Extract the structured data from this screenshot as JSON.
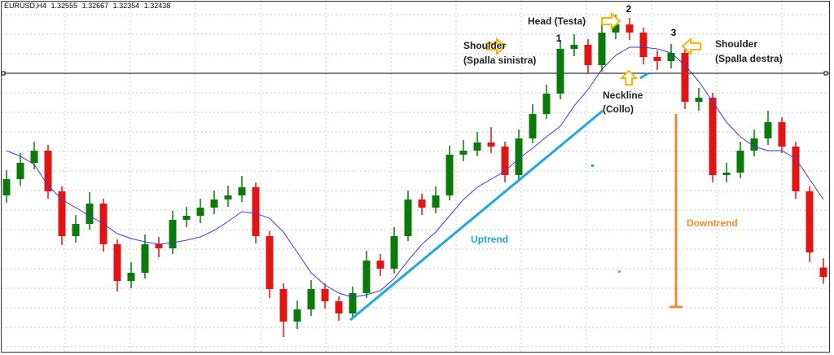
{
  "chart_data": {
    "type": "candlestick",
    "symbol": "EURUSD,H4",
    "open": [
      1.3344,
      1.3364,
      1.3384,
      1.3399,
      1.3349,
      1.3294,
      1.3309,
      1.3334,
      1.3284,
      1.3239,
      1.3249,
      1.3284,
      1.3279,
      1.3314,
      1.3319,
      1.3329,
      1.3339,
      1.3344,
      1.3354,
      1.3294,
      1.3229,
      1.3189,
      1.3204,
      1.3229,
      1.3214,
      1.3199,
      1.3224,
      1.3264,
      1.3254,
      1.3294,
      1.3339,
      1.3329,
      1.3344,
      1.3394,
      1.3399,
      1.3409,
      1.3404,
      1.3369,
      1.3414,
      1.3444,
      1.3469,
      1.3524,
      1.3529,
      1.3504,
      1.3544,
      1.3554,
      1.3544,
      1.3514,
      1.3509,
      1.3519,
      1.3459,
      1.3464,
      1.3369,
      1.3372,
      1.3399,
      1.3414,
      1.3434,
      1.3404,
      1.3349,
      1.32555
    ],
    "high": [
      1.3375,
      1.3396,
      1.341,
      1.3406,
      1.3355,
      1.332,
      1.3348,
      1.334,
      1.329,
      1.3262,
      1.3296,
      1.3293,
      1.3325,
      1.333,
      1.334,
      1.335,
      1.3356,
      1.3368,
      1.336,
      1.33,
      1.3236,
      1.3215,
      1.324,
      1.3236,
      1.322,
      1.3232,
      1.3276,
      1.3272,
      1.3305,
      1.335,
      1.3346,
      1.3355,
      1.3405,
      1.3412,
      1.3422,
      1.3428,
      1.341,
      1.3425,
      1.3456,
      1.348,
      1.3535,
      1.3542,
      1.3536,
      1.3556,
      1.3566,
      1.3562,
      1.355,
      1.3522,
      1.353,
      1.3525,
      1.3476,
      1.347,
      1.3384,
      1.341,
      1.3425,
      1.3448,
      1.344,
      1.341,
      1.3355,
      1.32667
    ],
    "low": [
      1.3335,
      1.3356,
      1.3376,
      1.334,
      1.3283,
      1.3286,
      1.3302,
      1.3275,
      1.3226,
      1.323,
      1.3242,
      1.3268,
      1.3272,
      1.3305,
      1.331,
      1.3321,
      1.333,
      1.3336,
      1.3285,
      1.3218,
      1.317,
      1.318,
      1.3196,
      1.3205,
      1.319,
      1.3192,
      1.3218,
      1.3245,
      1.3248,
      1.3288,
      1.332,
      1.3322,
      1.3338,
      1.3386,
      1.3392,
      1.3396,
      1.336,
      1.3362,
      1.3408,
      1.3438,
      1.3462,
      1.3515,
      1.3494,
      1.3496,
      1.3536,
      1.3535,
      1.3505,
      1.3498,
      1.35,
      1.345,
      1.3448,
      1.336,
      1.336,
      1.3365,
      1.3392,
      1.3406,
      1.3396,
      1.334,
      1.3262,
      1.32354
    ],
    "close": [
      1.3364,
      1.3384,
      1.3399,
      1.3349,
      1.3294,
      1.3309,
      1.3334,
      1.3284,
      1.3239,
      1.3249,
      1.3284,
      1.3279,
      1.3314,
      1.3319,
      1.3329,
      1.3339,
      1.3344,
      1.3354,
      1.3294,
      1.3229,
      1.3189,
      1.3204,
      1.3229,
      1.3214,
      1.3199,
      1.3224,
      1.3264,
      1.3254,
      1.3294,
      1.3339,
      1.3329,
      1.3344,
      1.3394,
      1.3399,
      1.3409,
      1.3404,
      1.3369,
      1.3414,
      1.3444,
      1.3469,
      1.3524,
      1.3529,
      1.3504,
      1.3544,
      1.3554,
      1.3544,
      1.3514,
      1.3509,
      1.3519,
      1.3459,
      1.3464,
      1.3369,
      1.3372,
      1.3399,
      1.3414,
      1.3434,
      1.3404,
      1.3349,
      1.3274,
      1.32438
    ],
    "up_color": "#0a7a0a",
    "down_color": "#e31414",
    "moving_average": {
      "color": "#3a3ad6",
      "values": [
        1.3399,
        1.3392,
        1.3382,
        1.3356,
        1.3339,
        1.3329,
        1.3319,
        1.3309,
        1.3297,
        1.3291,
        1.3287,
        1.3284,
        1.3286,
        1.3289,
        1.3293,
        1.3301,
        1.3312,
        1.3324,
        1.3322,
        1.3316,
        1.3299,
        1.3274,
        1.3249,
        1.3234,
        1.3224,
        1.3219,
        1.3222,
        1.3227,
        1.3242,
        1.3264,
        1.3284,
        1.3299,
        1.3319,
        1.3339,
        1.3354,
        1.3364,
        1.3374,
        1.3389,
        1.3402,
        1.3416,
        1.3429,
        1.3454,
        1.3474,
        1.3499,
        1.3516,
        1.3526,
        1.3526,
        1.3524,
        1.3519,
        1.3504,
        1.3484,
        1.3459,
        1.3434,
        1.3416,
        1.3404,
        1.3399,
        1.3399,
        1.3389,
        1.3364,
        1.3339
      ]
    },
    "horizontal_line": 1.3494,
    "ylim": [
      1.3152,
      1.3584
    ],
    "grid": true,
    "annotations": {
      "head": "Head (Testa)",
      "label_1": "1",
      "label_2": "2",
      "label_3": "3",
      "left_shoulder": [
        "Shoulder",
        "(Spalla sinistra)"
      ],
      "right_shoulder": [
        "Shoulder",
        "(Spalla destra)"
      ],
      "neckline": [
        "Neckline",
        "(Collo)"
      ],
      "uptrend": "Uptrend",
      "downtrend": "Downtrend"
    }
  }
}
